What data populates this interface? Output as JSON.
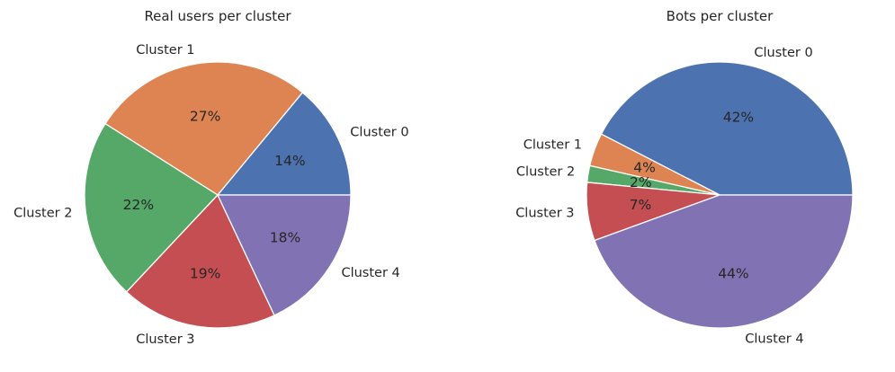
{
  "chart_data": [
    {
      "type": "pie",
      "title": "Real users per cluster",
      "labels": [
        "Cluster 0",
        "Cluster 1",
        "Cluster 2",
        "Cluster 3",
        "Cluster 4"
      ],
      "values": [
        14,
        27,
        22,
        19,
        18
      ],
      "value_labels": [
        "14%",
        "27%",
        "22%",
        "19%",
        "18%"
      ],
      "colors": [
        "#4c72b0",
        "#dd8452",
        "#55a868",
        "#c44e52",
        "#8172b3"
      ],
      "start_angle_deg": 0,
      "direction": "counterclockwise",
      "legend": "none"
    },
    {
      "type": "pie",
      "title": "Bots per cluster",
      "labels": [
        "Cluster 0",
        "Cluster 1",
        "Cluster 2",
        "Cluster 3",
        "Cluster 4"
      ],
      "values": [
        42,
        4,
        2,
        7,
        44
      ],
      "value_labels": [
        "42%",
        "4%",
        "2%",
        "7%",
        "44%"
      ],
      "colors": [
        "#4c72b0",
        "#dd8452",
        "#55a868",
        "#c44e52",
        "#8172b3"
      ],
      "start_angle_deg": 0,
      "direction": "counterclockwise",
      "legend": "none"
    }
  ]
}
